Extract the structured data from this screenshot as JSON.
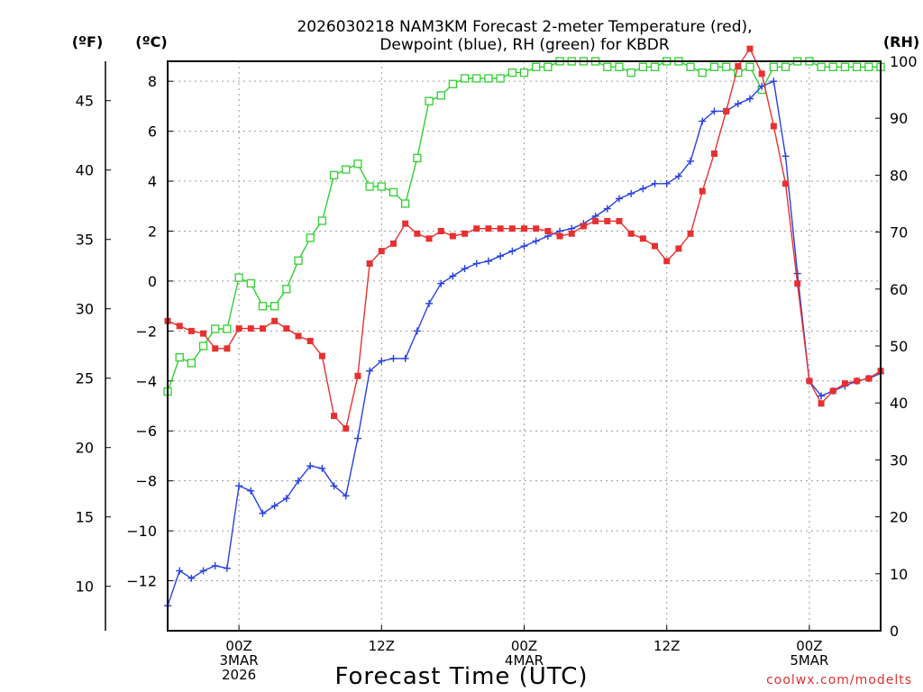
{
  "chart_data": {
    "type": "line",
    "title_line1": "2026030218 NAM3KM Forecast 2-meter Temperature (red),",
    "title_line2": "Dewpoint (blue), RH (green) for KBDR",
    "unit_left_f": "(ºF)",
    "unit_left_c": "(ºC)",
    "unit_right": "(RH)",
    "xlabel": "Forecast Time (UTC)",
    "credit": "coolwx.com/modelts",
    "x_ticks": [
      {
        "hour": 6,
        "lines": [
          "00Z",
          "3MAR",
          "2026"
        ]
      },
      {
        "hour": 18,
        "lines": [
          "12Z"
        ]
      },
      {
        "hour": 30,
        "lines": [
          "00Z",
          "4MAR"
        ]
      },
      {
        "hour": 42,
        "lines": [
          "12Z"
        ]
      },
      {
        "hour": 54,
        "lines": [
          "00Z",
          "5MAR"
        ]
      }
    ],
    "xlim": [
      0,
      60
    ],
    "ylim_c": [
      -14,
      8.8
    ],
    "ylim_rh": [
      0,
      100
    ],
    "y_ticks_c": [
      8,
      6,
      4,
      2,
      0,
      -2,
      -4,
      -6,
      -8,
      -10,
      -12
    ],
    "y_ticks_f": [
      45,
      40,
      35,
      30,
      25,
      20,
      15,
      10
    ],
    "y_ticks_rh": [
      100,
      90,
      80,
      70,
      60,
      50,
      40,
      30,
      20,
      10,
      0
    ],
    "hours": [
      0,
      1,
      2,
      3,
      4,
      5,
      6,
      7,
      8,
      9,
      10,
      11,
      12,
      13,
      14,
      15,
      16,
      17,
      18,
      19,
      20,
      21,
      22,
      23,
      24,
      25,
      26,
      27,
      28,
      29,
      30,
      31,
      32,
      33,
      34,
      35,
      36,
      37,
      38,
      39,
      40,
      41,
      42,
      43,
      44,
      45,
      46,
      47,
      48,
      49,
      50,
      51,
      52,
      53,
      54,
      55,
      56,
      57,
      58,
      59,
      60
    ],
    "series": [
      {
        "name": "Temperature",
        "color": "#e83030",
        "marker": "filled-square",
        "values": [
          -1.6,
          -1.8,
          -2.0,
          -2.1,
          -2.7,
          -2.7,
          -1.9,
          -1.9,
          -1.9,
          -1.6,
          -1.9,
          -2.2,
          -2.4,
          -3.0,
          -5.4,
          -5.9,
          -3.8,
          0.7,
          1.2,
          1.5,
          2.3,
          1.9,
          1.7,
          2.0,
          1.8,
          1.9,
          2.1,
          2.1,
          2.1,
          2.1,
          2.1,
          2.1,
          2.0,
          1.8,
          1.9,
          2.2,
          2.4,
          2.4,
          2.4,
          1.9,
          1.7,
          1.4,
          0.8,
          1.3,
          1.9,
          3.6,
          5.1,
          6.8,
          8.6,
          9.3,
          8.3,
          6.2,
          3.9,
          -0.1,
          -4.0,
          -4.9,
          -4.4,
          -4.1,
          -4.0,
          -3.9,
          -3.6
        ]
      },
      {
        "name": "Dewpoint",
        "color": "#2840e0",
        "marker": "plus",
        "values": [
          -13.0,
          -11.6,
          -11.9,
          -11.6,
          -11.4,
          -11.5,
          -8.2,
          -8.4,
          -9.3,
          -9.0,
          -8.7,
          -8.0,
          -7.4,
          -7.5,
          -8.2,
          -8.6,
          -6.3,
          -3.6,
          -3.2,
          -3.1,
          -3.1,
          -2.0,
          -0.9,
          -0.1,
          0.2,
          0.5,
          0.7,
          0.8,
          1.0,
          1.2,
          1.4,
          1.6,
          1.8,
          2.0,
          2.1,
          2.3,
          2.6,
          2.9,
          3.3,
          3.5,
          3.7,
          3.9,
          3.9,
          4.2,
          4.8,
          6.4,
          6.8,
          6.8,
          7.1,
          7.3,
          7.8,
          8.0,
          5.0,
          0.3,
          -4.0,
          -4.6,
          -4.4,
          -4.2,
          -4.0,
          -3.9,
          -3.7
        ]
      },
      {
        "name": "RH",
        "color": "#30d030",
        "marker": "open-square",
        "values": [
          42,
          48,
          47,
          50,
          53,
          53,
          62,
          61,
          57,
          57,
          60,
          65,
          69,
          72,
          80,
          81,
          82,
          78,
          78,
          77,
          75,
          83,
          93,
          94,
          96,
          97,
          97,
          97,
          97,
          98,
          98,
          99,
          99,
          100,
          100,
          100,
          100,
          99,
          99,
          98,
          99,
          99,
          100,
          100,
          99,
          98,
          99,
          99,
          98,
          99,
          95,
          99,
          99,
          100,
          100,
          99,
          99,
          99,
          99,
          99,
          99
        ]
      }
    ]
  }
}
